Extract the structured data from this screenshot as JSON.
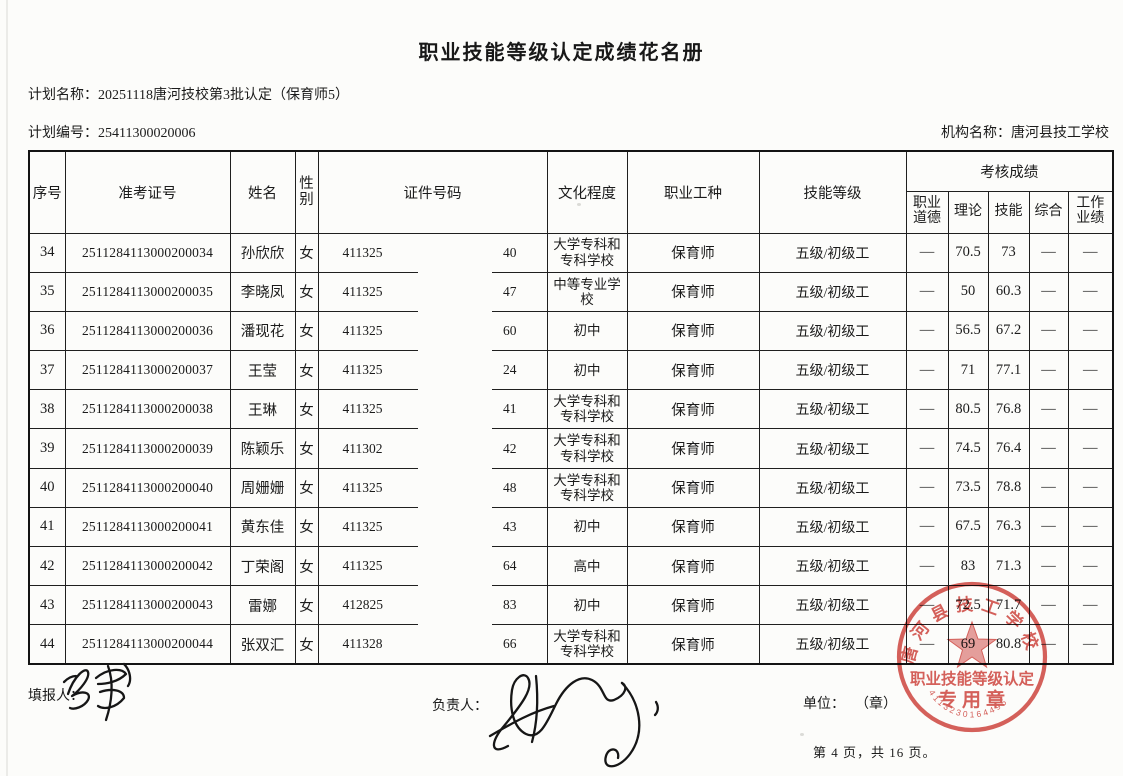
{
  "title": "职业技能等级认定成绩花名册",
  "meta": {
    "plan_name_label": "计划名称：",
    "plan_name_value": "20251118唐河技校第3批认定（保育师5）",
    "plan_code_label": "计划编号：",
    "plan_code_value": "25411300020006",
    "org_label": "机构名称：",
    "org_value": "唐河县技工学校"
  },
  "table": {
    "headers": {
      "no": "序号",
      "ticket": "准考证号",
      "name": "姓名",
      "gender": "性\n别",
      "id": "证件号码",
      "edu": "文化程度",
      "occupation": "职业工种",
      "level": "技能等级",
      "score_group": "考核成绩",
      "ethics": "职业\n道德",
      "theory": "理论",
      "skill": "技能",
      "comprehensive": "综合",
      "work": "工作\n业绩"
    },
    "rows": [
      {
        "no": "34",
        "ticket": "2511284113000200034",
        "name": "孙欣欣",
        "gender": "女",
        "id_left": "411325",
        "id_right": "40",
        "edu": "大学专科和\n专科学校",
        "occupation": "保育师",
        "level": "五级/初级工",
        "ethics": "—",
        "theory": "70.5",
        "skill": "73",
        "comprehensive": "—",
        "work": "—"
      },
      {
        "no": "35",
        "ticket": "2511284113000200035",
        "name": "李晓凤",
        "gender": "女",
        "id_left": "411325",
        "id_right": "47",
        "edu": "中等专业学\n校",
        "occupation": "保育师",
        "level": "五级/初级工",
        "ethics": "—",
        "theory": "50",
        "skill": "60.3",
        "comprehensive": "—",
        "work": "—"
      },
      {
        "no": "36",
        "ticket": "2511284113000200036",
        "name": "潘现花",
        "gender": "女",
        "id_left": "411325",
        "id_right": "60",
        "edu": "初中",
        "occupation": "保育师",
        "level": "五级/初级工",
        "ethics": "—",
        "theory": "56.5",
        "skill": "67.2",
        "comprehensive": "—",
        "work": "—"
      },
      {
        "no": "37",
        "ticket": "2511284113000200037",
        "name": "王莹",
        "gender": "女",
        "id_left": "411325",
        "id_right": "24",
        "edu": "初中",
        "occupation": "保育师",
        "level": "五级/初级工",
        "ethics": "—",
        "theory": "71",
        "skill": "77.1",
        "comprehensive": "—",
        "work": "—"
      },
      {
        "no": "38",
        "ticket": "2511284113000200038",
        "name": "王琳",
        "gender": "女",
        "id_left": "411325",
        "id_right": "41",
        "edu": "大学专科和\n专科学校",
        "occupation": "保育师",
        "level": "五级/初级工",
        "ethics": "—",
        "theory": "80.5",
        "skill": "76.8",
        "comprehensive": "—",
        "work": "—"
      },
      {
        "no": "39",
        "ticket": "2511284113000200039",
        "name": "陈颖乐",
        "gender": "女",
        "id_left": "411302",
        "id_right": "42",
        "edu": "大学专科和\n专科学校",
        "occupation": "保育师",
        "level": "五级/初级工",
        "ethics": "—",
        "theory": "74.5",
        "skill": "76.4",
        "comprehensive": "—",
        "work": "—"
      },
      {
        "no": "40",
        "ticket": "2511284113000200040",
        "name": "周姗姗",
        "gender": "女",
        "id_left": "411325",
        "id_right": "48",
        "edu": "大学专科和\n专科学校",
        "occupation": "保育师",
        "level": "五级/初级工",
        "ethics": "—",
        "theory": "73.5",
        "skill": "78.8",
        "comprehensive": "—",
        "work": "—"
      },
      {
        "no": "41",
        "ticket": "2511284113000200041",
        "name": "黄东佳",
        "gender": "女",
        "id_left": "411325",
        "id_right": "43",
        "edu": "初中",
        "occupation": "保育师",
        "level": "五级/初级工",
        "ethics": "—",
        "theory": "67.5",
        "skill": "76.3",
        "comprehensive": "—",
        "work": "—"
      },
      {
        "no": "42",
        "ticket": "2511284113000200042",
        "name": "丁荣阁",
        "gender": "女",
        "id_left": "411325",
        "id_right": "64",
        "edu": "高中",
        "occupation": "保育师",
        "level": "五级/初级工",
        "ethics": "—",
        "theory": "83",
        "skill": "71.3",
        "comprehensive": "—",
        "work": "—"
      },
      {
        "no": "43",
        "ticket": "2511284113000200043",
        "name": "雷娜",
        "gender": "女",
        "id_left": "412825",
        "id_right": "83",
        "edu": "初中",
        "occupation": "保育师",
        "level": "五级/初级工",
        "ethics": "—",
        "theory": "72.5",
        "skill": "71.7",
        "comprehensive": "—",
        "work": "—"
      },
      {
        "no": "44",
        "ticket": "2511284113000200044",
        "name": "张双汇",
        "gender": "女",
        "id_left": "411328",
        "id_right": "66",
        "edu": "大学专科和\n专科学校",
        "occupation": "保育师",
        "level": "五级/初级工",
        "ethics": "—",
        "theory": "69",
        "skill": "80.8",
        "comprehensive": "—",
        "work": "—"
      }
    ]
  },
  "footer": {
    "preparer_label": "填报人：",
    "manager_label": "负责人：",
    "unit_label": "单位：",
    "seal_placeholder": "（章）",
    "page_info": "第 4 页，共 16 页。"
  },
  "stamp": {
    "arc_text": "唐河县技工学校",
    "line1": "职业技能等级认定",
    "line2": "专用章",
    "serial": "4113230164495",
    "color": "#d0453f"
  }
}
